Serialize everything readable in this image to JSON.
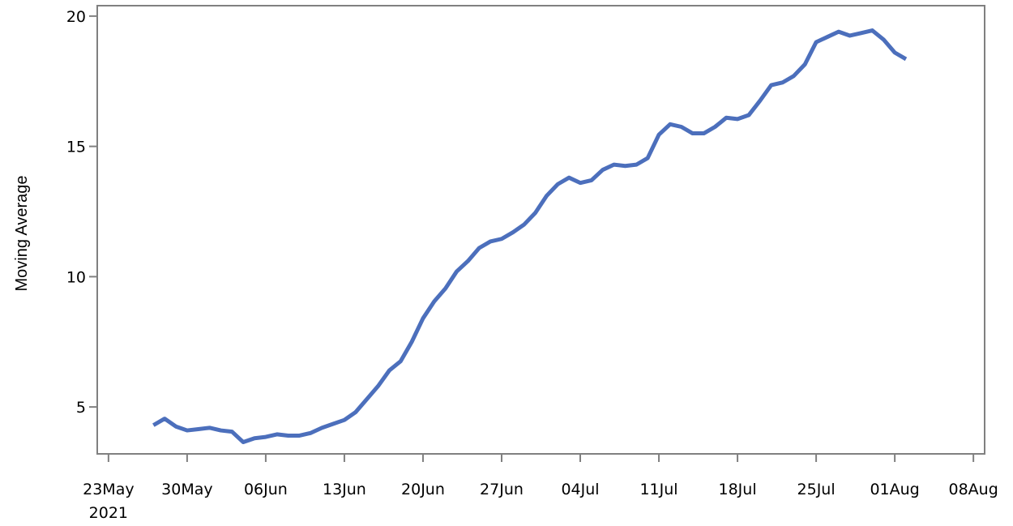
{
  "chart_data": {
    "type": "line",
    "ylabel": "Moving Average",
    "xlabel": "",
    "x_start": "2021-05-27",
    "x_step": "1 day",
    "xlim": [
      "2021-05-22",
      "2021-08-09"
    ],
    "ylim": [
      3.2,
      20.4
    ],
    "x_ticks": [
      {
        "date": "2021-05-23",
        "label": "23May",
        "sublabel": "2021"
      },
      {
        "date": "2021-05-30",
        "label": "30May"
      },
      {
        "date": "2021-06-06",
        "label": "06Jun"
      },
      {
        "date": "2021-06-13",
        "label": "13Jun"
      },
      {
        "date": "2021-06-20",
        "label": "20Jun"
      },
      {
        "date": "2021-06-27",
        "label": "27Jun"
      },
      {
        "date": "2021-07-04",
        "label": "04Jul"
      },
      {
        "date": "2021-07-11",
        "label": "11Jul"
      },
      {
        "date": "2021-07-18",
        "label": "18Jul"
      },
      {
        "date": "2021-07-25",
        "label": "25Jul"
      },
      {
        "date": "2021-08-01",
        "label": "01Aug"
      },
      {
        "date": "2021-08-08",
        "label": "08Aug"
      }
    ],
    "y_ticks": [
      5,
      10,
      15,
      20
    ],
    "grid": false,
    "legend": "none",
    "colors": {
      "line": "#4c6fbc",
      "frame": "#808080"
    },
    "series": [
      {
        "values": [
          4.3,
          4.55,
          4.25,
          4.1,
          4.15,
          4.2,
          4.1,
          4.05,
          3.65,
          3.8,
          3.85,
          3.95,
          3.9,
          3.9,
          4.0,
          4.2,
          4.35,
          4.5,
          4.8,
          5.3,
          5.8,
          6.4,
          6.75,
          7.5,
          8.4,
          9.05,
          9.55,
          10.2,
          10.6,
          11.1,
          11.35,
          11.45,
          11.7,
          12.0,
          12.45,
          13.1,
          13.55,
          13.8,
          13.6,
          13.7,
          14.1,
          14.3,
          14.25,
          14.3,
          14.55,
          15.45,
          15.85,
          15.75,
          15.5,
          15.5,
          15.75,
          16.1,
          16.05,
          16.2,
          16.75,
          17.35,
          17.45,
          17.7,
          18.15,
          19.0,
          19.2,
          19.4,
          19.25,
          19.35,
          19.45,
          19.1,
          18.6,
          18.35
        ]
      }
    ]
  }
}
